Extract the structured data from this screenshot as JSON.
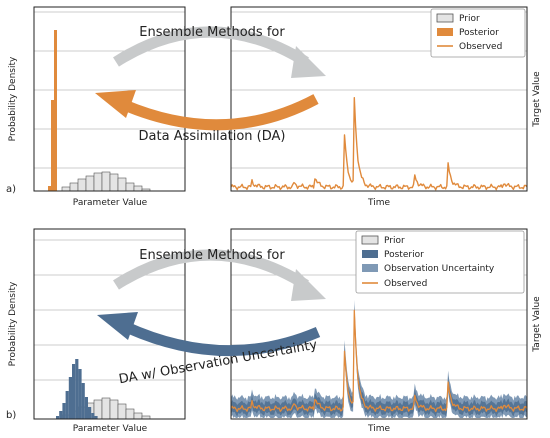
{
  "panels": [
    {
      "label": "a)",
      "title_top": "Ensemble Methods for",
      "title_bottom": "Data Assimilation (DA)",
      "left_xlabel": "Parameter Value",
      "left_ylabel": "Probability Density",
      "right_xlabel": "Time",
      "right_ylabel": "Target Value",
      "legend": [
        "Prior",
        "Posterior",
        "Observed"
      ]
    },
    {
      "label": "b)",
      "title_top": "Ensemble Methods for",
      "title_bottom": "DA w/ Observation Uncertainty",
      "left_xlabel": "Parameter Value",
      "left_ylabel": "Probability Density",
      "right_xlabel": "Time",
      "right_ylabel": "Target Value",
      "legend": [
        "Prior",
        "Posterior",
        "Observation Uncertainty",
        "Observed"
      ]
    }
  ],
  "colors": {
    "prior_fill": "#e4e4e4",
    "prior_edge": "#555555",
    "posterior_a": "#e08a3c",
    "posterior_b": "#4e6e91",
    "obs_uncertainty": "#7f99b5",
    "observed": "#e08a3c",
    "arrow_grey": "#c8cacb",
    "arrow_a": "#e08a3c",
    "arrow_b": "#4e6e91",
    "grid": "#bdbdbd"
  }
}
